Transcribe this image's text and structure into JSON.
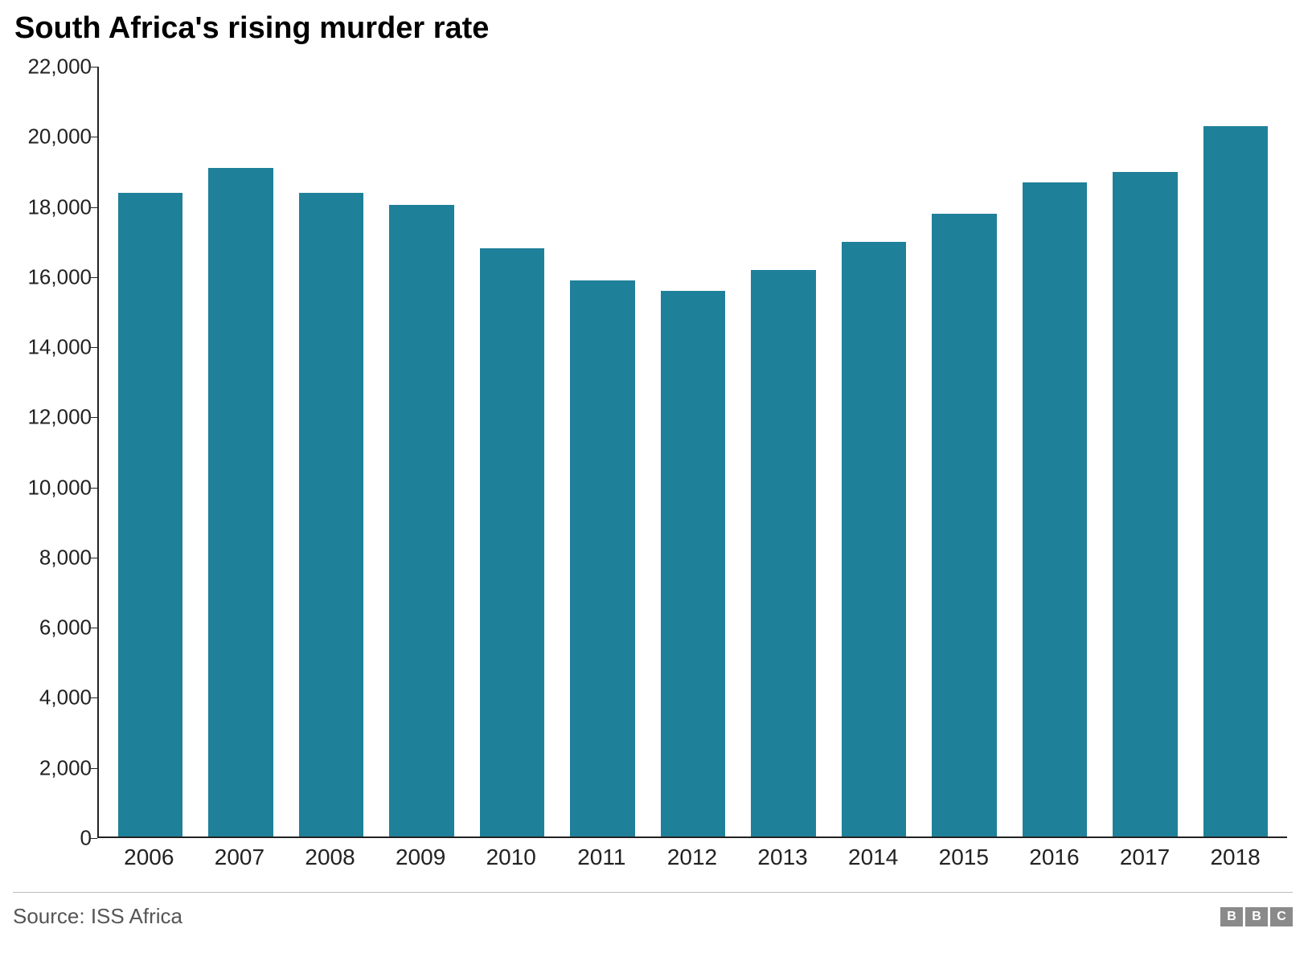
{
  "title": "South Africa's rising murder rate",
  "chart": {
    "type": "bar",
    "categories": [
      "2006",
      "2007",
      "2008",
      "2009",
      "2010",
      "2011",
      "2012",
      "2013",
      "2014",
      "2015",
      "2016",
      "2017",
      "2018"
    ],
    "values": [
      18400,
      19100,
      18400,
      18050,
      16800,
      15900,
      15600,
      16200,
      17000,
      17800,
      18700,
      19000,
      20300
    ],
    "bar_color": "#1f8099",
    "ylim": [
      0,
      22000
    ],
    "ytick_step": 2000,
    "ytick_labels": [
      "0",
      "2,000",
      "4,000",
      "6,000",
      "8,000",
      "10,000",
      "12,000",
      "14,000",
      "16,000",
      "18,000",
      "20,000",
      "22,000"
    ],
    "axis_color": "#222222",
    "background_color": "#ffffff",
    "tick_fontsize": 26,
    "xlabel_fontsize": 28,
    "title_fontsize": 38,
    "bar_gap_ratio": 0.28
  },
  "footer": {
    "source_label": "Source: ISS Africa",
    "logo_letters": [
      "B",
      "B",
      "C"
    ],
    "logo_box_color": "#8a8a8a",
    "divider_color": "#bbbbbb"
  }
}
